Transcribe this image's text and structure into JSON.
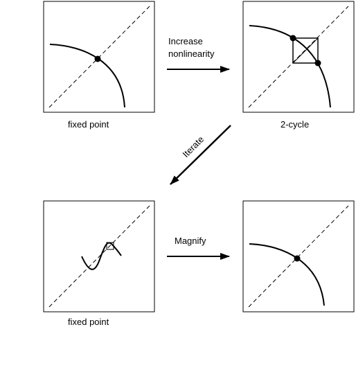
{
  "panels": {
    "top_left": {
      "caption": "fixed point"
    },
    "top_right": {
      "caption": "2-cycle"
    },
    "bottom_left": {
      "caption": "fixed point"
    },
    "bottom_right": {
      "caption": ""
    }
  },
  "arrows": {
    "top": {
      "line1": "Increase",
      "line2": "nonlinearity"
    },
    "diagonal": {
      "label": "Iterate"
    },
    "bottom": {
      "label": "Magnify"
    }
  }
}
